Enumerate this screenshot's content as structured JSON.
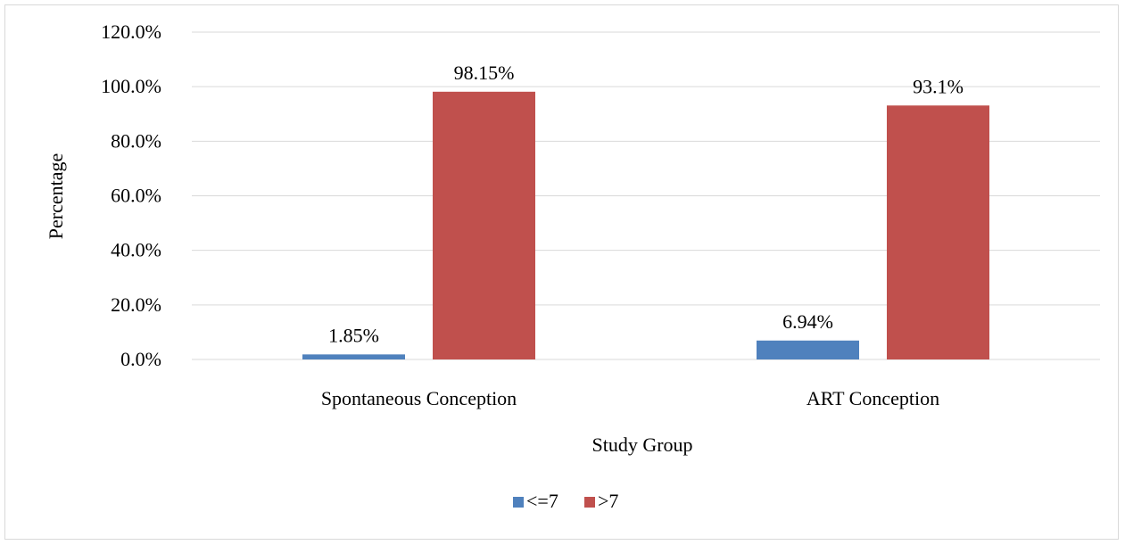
{
  "chart_data": {
    "type": "bar",
    "categories": [
      "Spontaneous Conception",
      "ART Conception"
    ],
    "series": [
      {
        "name": "<=7",
        "values": [
          1.85,
          6.94
        ],
        "labels": [
          "1.85%",
          "6.94%"
        ],
        "color": "#4f81bd"
      },
      {
        "name": ">7",
        "values": [
          98.15,
          93.1
        ],
        "labels": [
          "98.15%",
          "93.1%"
        ],
        "color": "#c0504d"
      }
    ],
    "xlabel": "Study Group",
    "ylabel": "Percentage",
    "ylim": [
      0,
      120
    ],
    "yticks": [
      0,
      20,
      40,
      60,
      80,
      100,
      120
    ],
    "ytick_labels": [
      "0.0%",
      "20.0%",
      "40.0%",
      "60.0%",
      "80.0%",
      "100.0%",
      "120.0%"
    ],
    "grid": true,
    "legend_position": "bottom",
    "gridline_color": "#d9d9d9"
  }
}
